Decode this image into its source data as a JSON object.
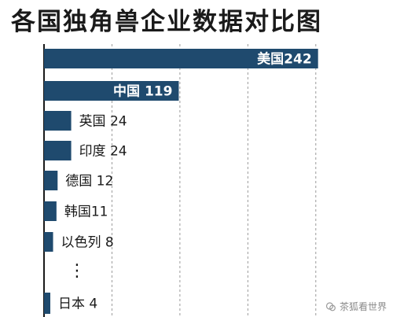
{
  "chart_data": {
    "type": "bar",
    "orientation": "horizontal",
    "title": "各国独角兽企业数据对比图",
    "categories": [
      "美国",
      "中国",
      "英国",
      "印度",
      "德国",
      "韩国",
      "以色列",
      "日本"
    ],
    "values": [
      242,
      119,
      24,
      24,
      12,
      11,
      8,
      4
    ],
    "labels": [
      "美国242",
      "中国 119",
      "英国 24",
      "印度 24",
      "德国 12",
      "韩国11",
      "以色列 8",
      "日本 4"
    ],
    "ellipsis": "⋮",
    "xlim": [
      0,
      270
    ],
    "grid": true,
    "legend": "none",
    "bar_color": "#1f4a6e"
  },
  "watermark": {
    "text": "茶狐看世界",
    "icon": "wechat-icon"
  }
}
